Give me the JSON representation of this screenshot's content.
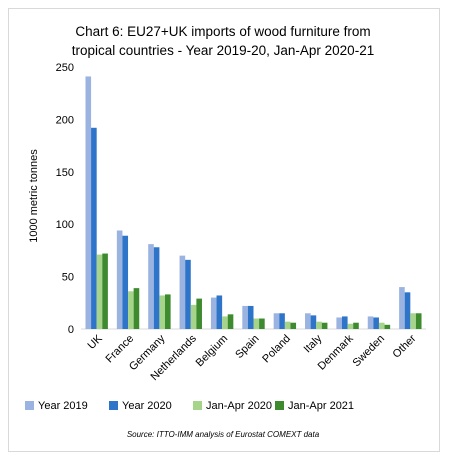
{
  "chart_data": {
    "type": "bar",
    "title": "Chart 6: EU27+UK imports of wood furniture from tropical countries - Year 2019-20, Jan-Apr 2020-21",
    "title_lines": [
      "Chart 6: EU27+UK imports of wood furniture from",
      "tropical countries - Year 2019-20, Jan-Apr 2020-21"
    ],
    "ylabel": "1000 metric tonnes",
    "xlabel": "",
    "ylim": [
      0,
      250
    ],
    "yticks": [
      0,
      50,
      100,
      150,
      200,
      250
    ],
    "grid": false,
    "legend_position": "bottom",
    "categories": [
      "UK",
      "France",
      "Germany",
      "Netherlands",
      "Belgium",
      "Spain",
      "Poland",
      "Italy",
      "Denmark",
      "Sweden",
      "Other"
    ],
    "series": [
      {
        "name": "Year 2019",
        "color": "#9bb3e0",
        "values": [
          241,
          94,
          81,
          70,
          30,
          22,
          15,
          15,
          11,
          12,
          40
        ]
      },
      {
        "name": "Year 2020",
        "color": "#2e75c9",
        "values": [
          192,
          89,
          78,
          66,
          32,
          22,
          15,
          13,
          12,
          11,
          35
        ]
      },
      {
        "name": "Jan-Apr 2020",
        "color": "#a6d48a",
        "values": [
          71,
          36,
          32,
          23,
          12,
          10,
          7,
          7,
          5,
          6,
          15
        ]
      },
      {
        "name": "Jan-Apr 2021",
        "color": "#3d8b2e",
        "values": [
          72,
          39,
          33,
          29,
          14,
          10,
          6,
          6,
          6,
          4,
          15
        ]
      }
    ],
    "source": "Source: ITTO-IMM analysis of Eurostat COMEXT data"
  }
}
